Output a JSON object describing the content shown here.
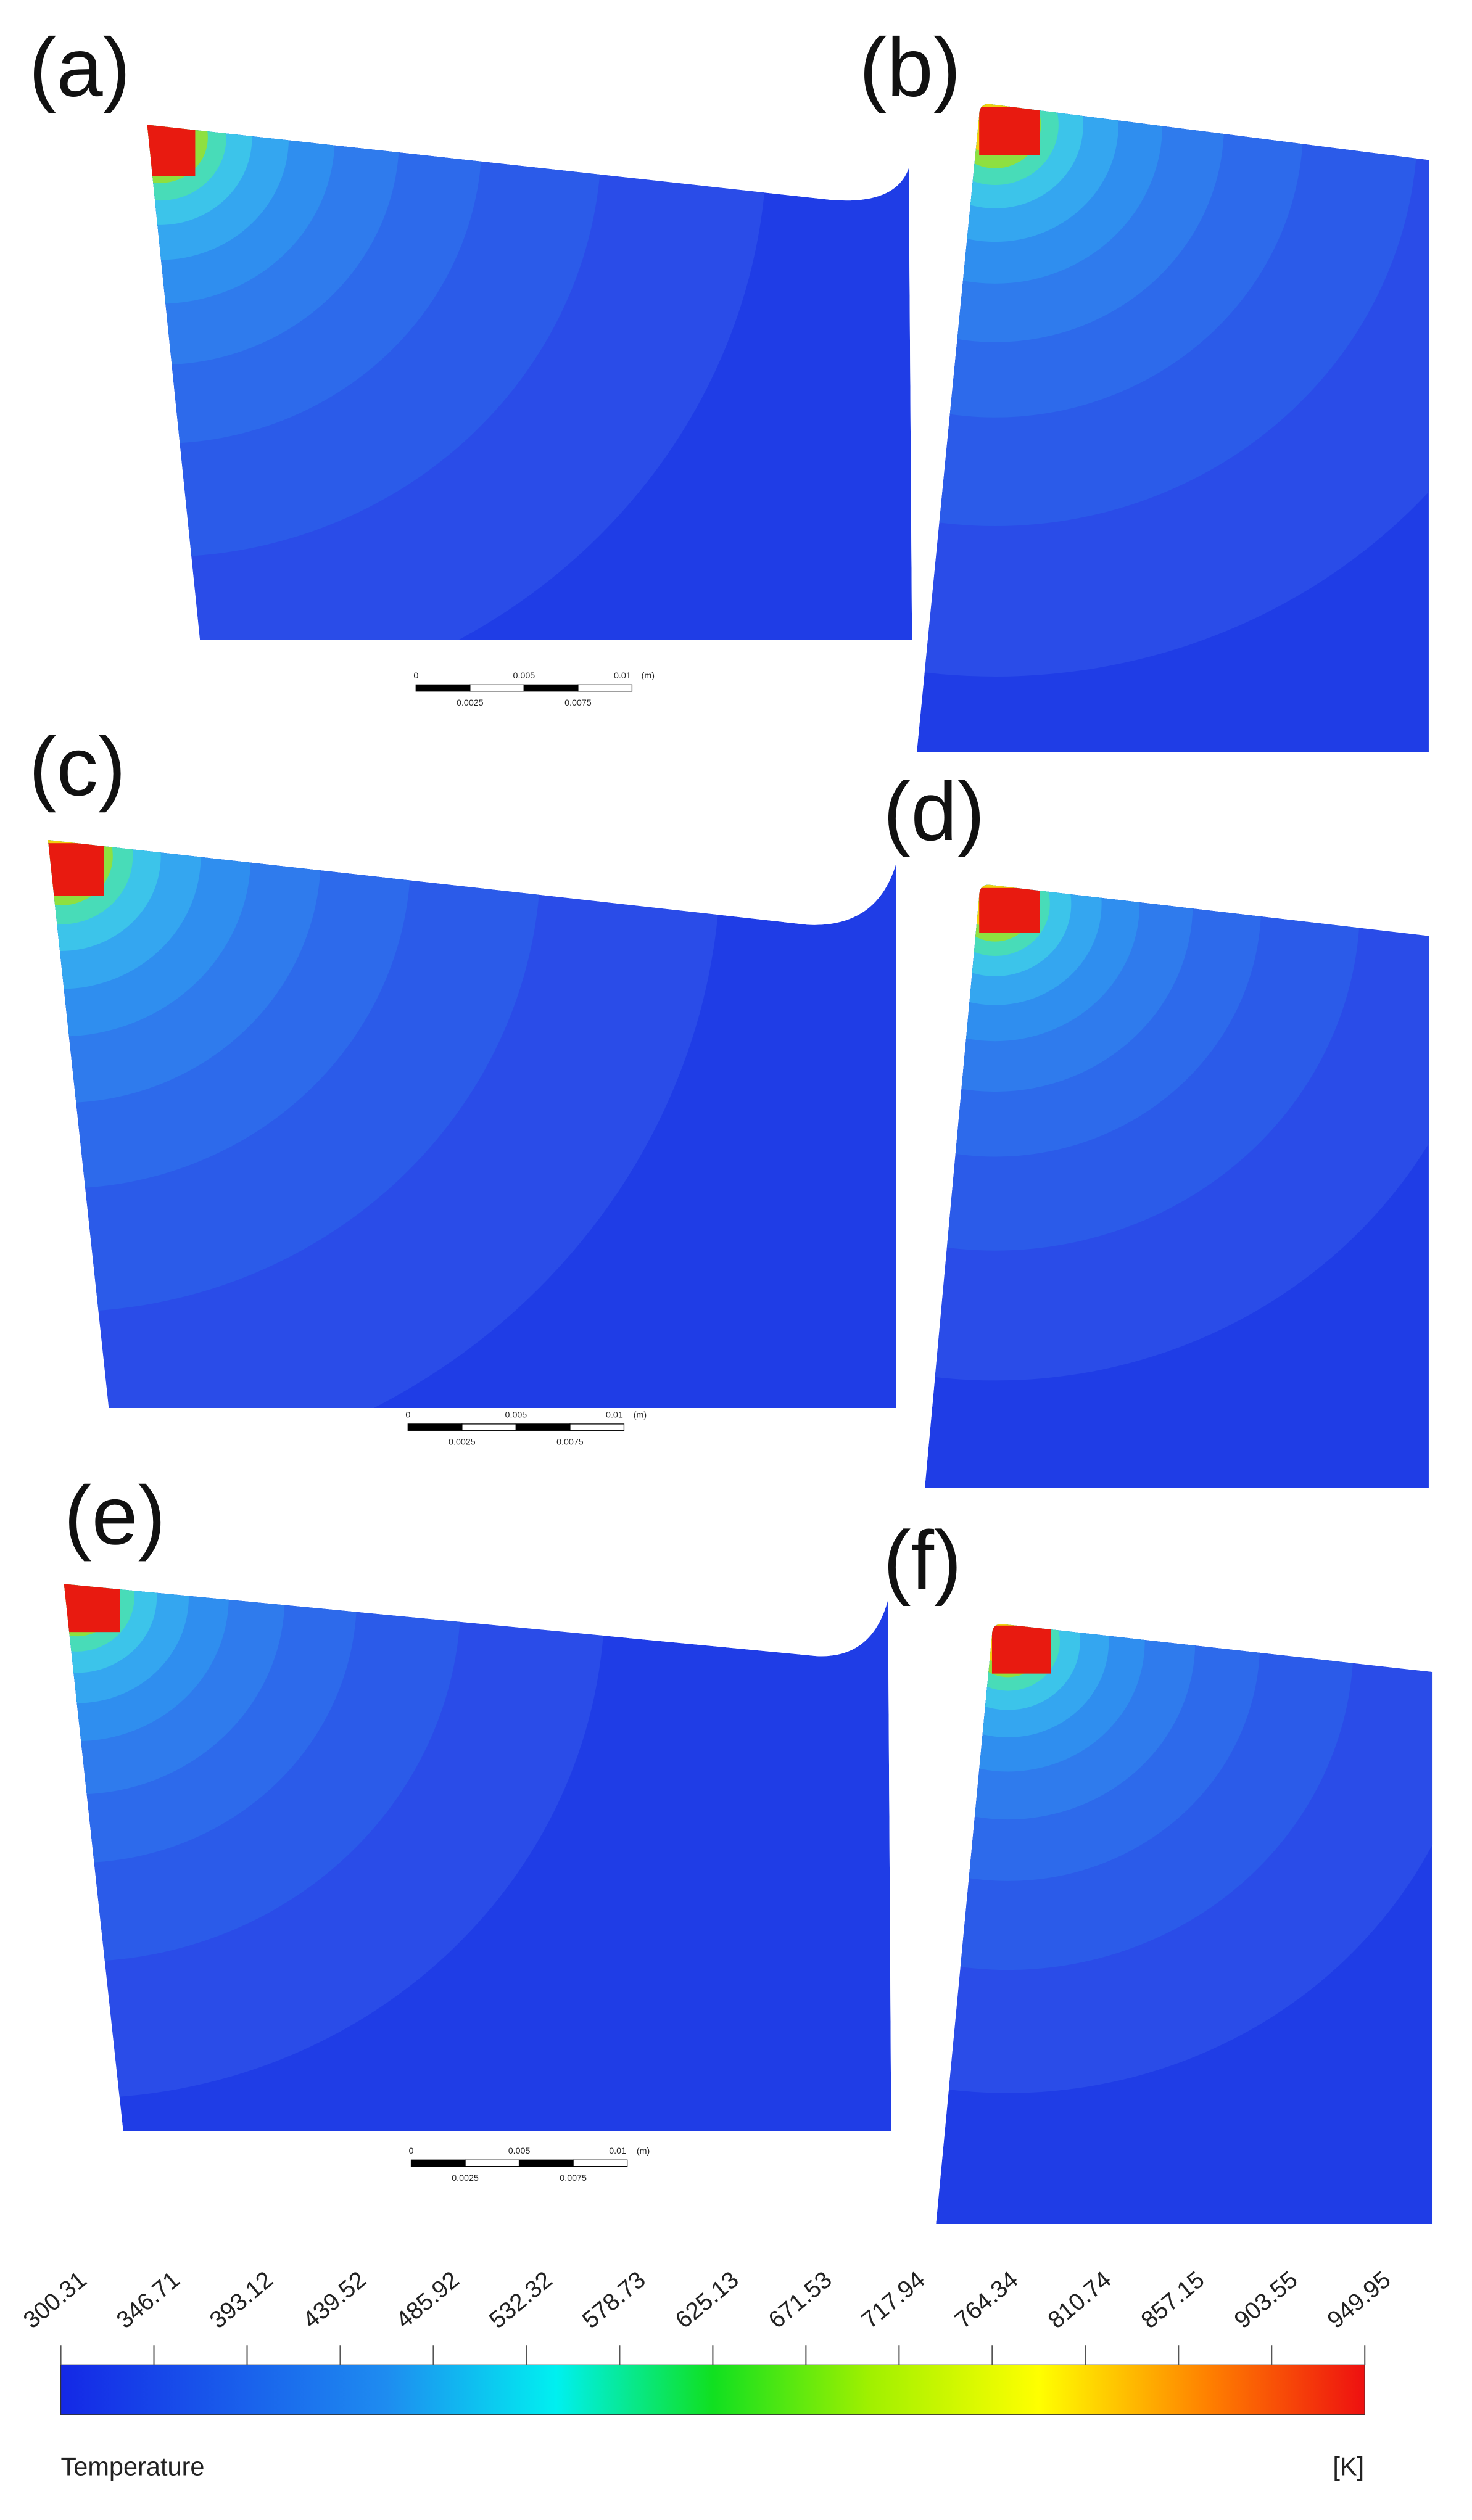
{
  "panels": [
    {
      "label": "(a)"
    },
    {
      "label": "(b)"
    },
    {
      "label": "(c)"
    },
    {
      "label": "(d)"
    },
    {
      "label": "(e)"
    },
    {
      "label": "(f)"
    }
  ],
  "scale_bars": [
    {
      "labels": [
        "0",
        "0.005",
        "0.01",
        "(m)",
        "0.0025",
        "0.0075"
      ]
    },
    {
      "labels": [
        "0",
        "0.005",
        "0.01",
        "(m)",
        "0.0025",
        "0.0075"
      ]
    },
    {
      "labels": [
        "0",
        "0.005",
        "0.01",
        "(m)",
        "0.0025",
        "0.0075"
      ]
    }
  ],
  "colorbar": {
    "ticks": [
      300.31,
      346.71,
      393.12,
      439.52,
      485.92,
      532.32,
      578.73,
      625.13,
      671.53,
      717.94,
      764.34,
      810.74,
      857.15,
      903.55,
      949.95
    ],
    "title": "Temperature",
    "unit": "[K]"
  }
}
